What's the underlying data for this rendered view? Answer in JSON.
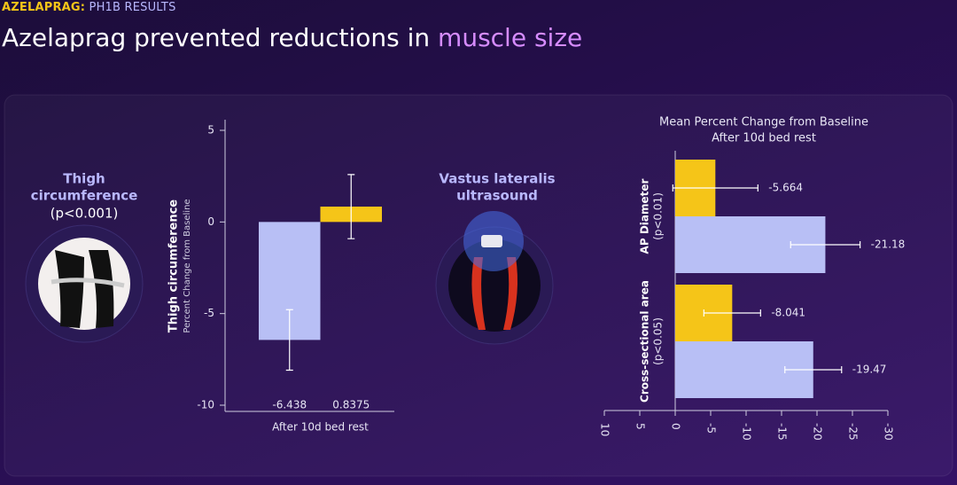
{
  "header": {
    "eyebrow_a": "AZELAPRAG:",
    "eyebrow_b": "PH1B RESULTS",
    "title_a": "Azelaprag prevented reductions in",
    "title_b": "muscle size"
  },
  "panels": [
    {
      "title": [
        "Thigh",
        "circumference"
      ],
      "note": "(p<0.001)"
    },
    {
      "title": [
        "Vastus lateralis",
        "ultrasound"
      ]
    }
  ],
  "chart_data": [
    {
      "type": "bar",
      "ylabel": "Thigh circumference",
      "ylabel_sub": "Percent Change from Baseline",
      "categories": [
        "After 10d bed rest"
      ],
      "series": [
        {
          "color": "#b8bff5",
          "values": [
            -6.438
          ],
          "errors": [
            1.65
          ]
        },
        {
          "color": "#f5c518",
          "values": [
            0.8375
          ],
          "errors": [
            1.75
          ]
        }
      ],
      "ylim": [
        -10,
        5
      ],
      "yticks": [
        -10,
        -5,
        0,
        5
      ]
    },
    {
      "type": "barh",
      "title": [
        "Mean Percent Change from Baseline",
        "After 10d bed rest"
      ],
      "categories": [
        "AP Diameter",
        "Cross-sectional area"
      ],
      "category_notes": [
        "(p<0.01)",
        "(p<0.05)"
      ],
      "series": [
        {
          "color": "#f5c518",
          "values": [
            -5.664,
            -8.041
          ],
          "errors": [
            6,
            4
          ]
        },
        {
          "color": "#b8bff5",
          "values": [
            -21.18,
            -19.47
          ],
          "errors": [
            4.9,
            4
          ]
        }
      ],
      "xlim": [
        10,
        -30
      ],
      "xticks": [
        10,
        5,
        0,
        -5,
        -10,
        -15,
        -20,
        -25,
        -30
      ]
    }
  ]
}
